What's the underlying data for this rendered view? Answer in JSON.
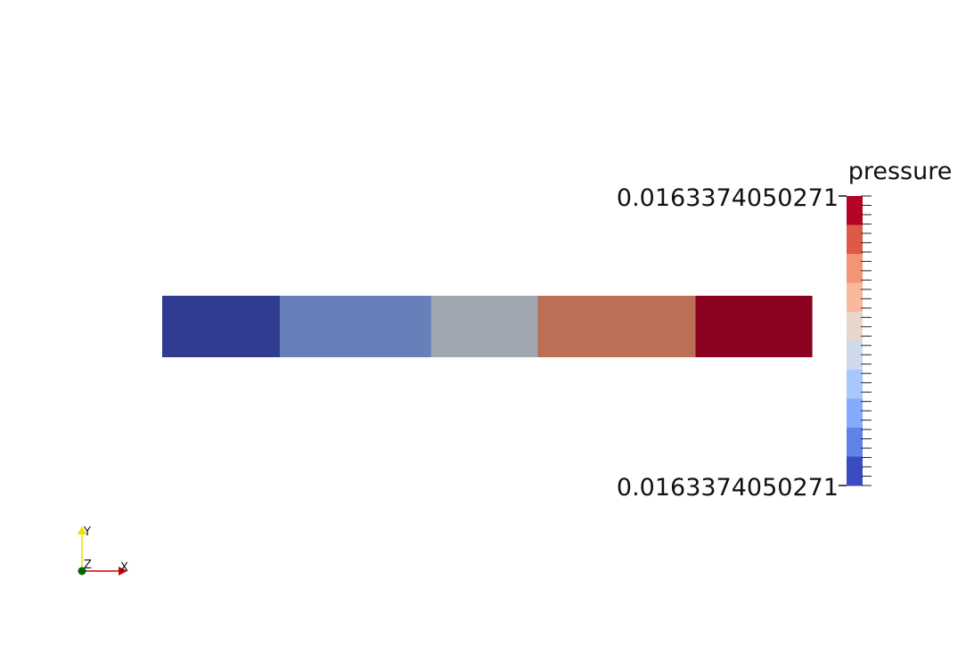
{
  "view": {
    "background": "#ffffff"
  },
  "colorbar": {
    "title": "pressure",
    "max_label": "0.0163374050271",
    "min_label": "0.0163374050271",
    "colors_top_to_bottom": [
      "#b40426",
      "#dd5a46",
      "#f39475",
      "#f7b89c",
      "#e8d6cc",
      "#cdd9ec",
      "#aac7fd",
      "#86a9fc",
      "#6282ea",
      "#3b4cc0"
    ]
  },
  "bar_object": {
    "segments": [
      {
        "color": "#303c90",
        "fraction": 0.181
      },
      {
        "color": "#6880ba",
        "fraction": 0.233
      },
      {
        "color": "#a1a7b0",
        "fraction": 0.164
      },
      {
        "color": "#bd6f55",
        "fraction": 0.243
      },
      {
        "color": "#8b0220",
        "fraction": 0.179
      }
    ]
  },
  "axes": {
    "x_label": "X",
    "y_label": "Y",
    "z_label": "Z",
    "x_color": "#cc0000",
    "y_color": "#e6e600",
    "z_color": "#006400"
  }
}
